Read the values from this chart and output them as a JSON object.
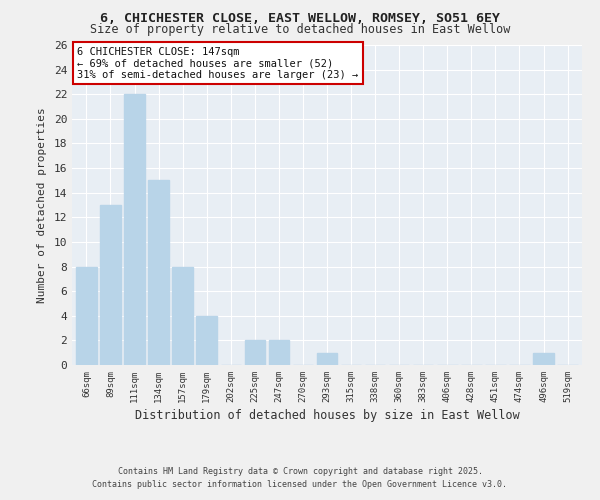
{
  "title": "6, CHICHESTER CLOSE, EAST WELLOW, ROMSEY, SO51 6EY",
  "subtitle": "Size of property relative to detached houses in East Wellow",
  "xlabel": "Distribution of detached houses by size in East Wellow",
  "ylabel": "Number of detached properties",
  "categories": [
    "66sqm",
    "89sqm",
    "111sqm",
    "134sqm",
    "157sqm",
    "179sqm",
    "202sqm",
    "225sqm",
    "247sqm",
    "270sqm",
    "293sqm",
    "315sqm",
    "338sqm",
    "360sqm",
    "383sqm",
    "406sqm",
    "428sqm",
    "451sqm",
    "474sqm",
    "496sqm",
    "519sqm"
  ],
  "values": [
    8,
    13,
    22,
    15,
    8,
    4,
    0,
    2,
    2,
    0,
    1,
    0,
    0,
    0,
    0,
    0,
    0,
    0,
    0,
    1,
    0
  ],
  "bar_color": "#b8d4e8",
  "ylim": [
    0,
    26
  ],
  "yticks": [
    0,
    2,
    4,
    6,
    8,
    10,
    12,
    14,
    16,
    18,
    20,
    22,
    24,
    26
  ],
  "annotation_title": "6 CHICHESTER CLOSE: 147sqm",
  "annotation_line1": "← 69% of detached houses are smaller (52)",
  "annotation_line2": "31% of semi-detached houses are larger (23) →",
  "annotation_box_color": "#ffffff",
  "annotation_box_edge_color": "#cc0000",
  "background_color": "#f0f0f0",
  "plot_bg_color": "#e8eef4",
  "grid_color": "#ffffff",
  "footer1": "Contains HM Land Registry data © Crown copyright and database right 2025.",
  "footer2": "Contains public sector information licensed under the Open Government Licence v3.0."
}
